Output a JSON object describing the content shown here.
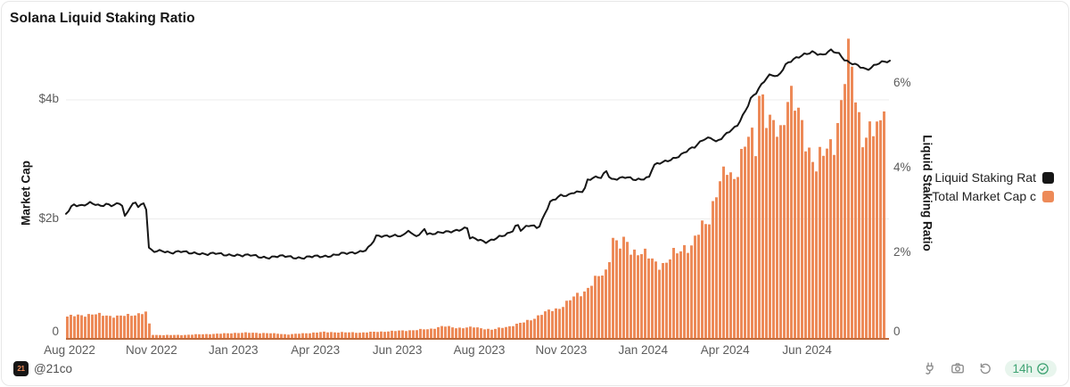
{
  "card": {
    "title": "Solana Liquid Staking Ratio"
  },
  "chart_data": {
    "type": "combo-bar-line",
    "title": "Solana Liquid Staking Ratio",
    "grid": "horizontal-left-axis",
    "legend_position": "right",
    "colors": {
      "line": "#161616",
      "bar": "#ED8A58",
      "baseline": "#BE6B3D",
      "gridline": "#ececec"
    },
    "left_axis": {
      "title": "Market Cap",
      "ticks": [
        "0",
        "$2b",
        "$4b"
      ],
      "tick_values": [
        0,
        2,
        4
      ],
      "unit": "$ billions"
    },
    "right_axis": {
      "title": "Liquid Staking Ratio",
      "ticks": [
        "0",
        "2%",
        "4%",
        "6%"
      ],
      "tick_values": [
        0,
        2,
        4,
        6
      ],
      "unit": "%"
    },
    "x_axis": {
      "ticks": [
        "Aug 2022",
        "Nov 2022",
        "Jan 2023",
        "Apr 2023",
        "Jun 2023",
        "Aug 2023",
        "Nov 2023",
        "Jan 2024",
        "Apr 2024",
        "Jun 2024"
      ]
    },
    "series": [
      {
        "name": "Liquid Staking Rat",
        "type": "line",
        "axis": "right",
        "unit": "%",
        "color": "#161616",
        "points": [
          [
            0.0,
            2.93
          ],
          [
            0.006,
            3.1
          ],
          [
            0.009,
            3.16
          ],
          [
            0.02,
            3.12
          ],
          [
            0.03,
            3.18
          ],
          [
            0.041,
            3.12
          ],
          [
            0.049,
            3.17
          ],
          [
            0.057,
            3.13
          ],
          [
            0.065,
            3.17
          ],
          [
            0.069,
            3.1
          ],
          [
            0.072,
            2.8
          ],
          [
            0.076,
            3.05
          ],
          [
            0.08,
            3.14
          ],
          [
            0.084,
            3.22
          ],
          [
            0.088,
            3.12
          ],
          [
            0.092,
            3.16
          ],
          [
            0.096,
            3.18
          ],
          [
            0.098,
            3.0
          ],
          [
            0.099,
            2.4
          ],
          [
            0.101,
            2.08
          ],
          [
            0.106,
            2.03
          ],
          [
            0.117,
            2.06
          ],
          [
            0.128,
            2.02
          ],
          [
            0.139,
            2.04
          ],
          [
            0.15,
            2.0
          ],
          [
            0.161,
            2.01
          ],
          [
            0.171,
            1.98
          ],
          [
            0.182,
            1.99
          ],
          [
            0.193,
            1.96
          ],
          [
            0.204,
            1.97
          ],
          [
            0.215,
            1.94
          ],
          [
            0.225,
            1.95
          ],
          [
            0.236,
            1.92
          ],
          [
            0.247,
            1.9
          ],
          [
            0.258,
            1.92
          ],
          [
            0.269,
            1.93
          ],
          [
            0.28,
            1.9
          ],
          [
            0.29,
            1.89
          ],
          [
            0.301,
            1.92
          ],
          [
            0.312,
            1.93
          ],
          [
            0.323,
            1.95
          ],
          [
            0.334,
            1.98
          ],
          [
            0.345,
            2.0
          ],
          [
            0.356,
            2.04
          ],
          [
            0.364,
            2.08
          ],
          [
            0.369,
            2.15
          ],
          [
            0.373,
            2.26
          ],
          [
            0.377,
            2.39
          ],
          [
            0.388,
            2.41
          ],
          [
            0.399,
            2.43
          ],
          [
            0.41,
            2.4
          ],
          [
            0.417,
            2.56
          ],
          [
            0.42,
            2.42
          ],
          [
            0.431,
            2.44
          ],
          [
            0.435,
            2.63
          ],
          [
            0.439,
            2.45
          ],
          [
            0.45,
            2.46
          ],
          [
            0.461,
            2.5
          ],
          [
            0.472,
            2.54
          ],
          [
            0.481,
            2.57
          ],
          [
            0.488,
            2.59
          ],
          [
            0.49,
            2.35
          ],
          [
            0.497,
            2.34
          ],
          [
            0.506,
            2.3
          ],
          [
            0.509,
            2.27
          ],
          [
            0.518,
            2.32
          ],
          [
            0.527,
            2.38
          ],
          [
            0.535,
            2.43
          ],
          [
            0.542,
            2.52
          ],
          [
            0.548,
            2.71
          ],
          [
            0.553,
            2.55
          ],
          [
            0.558,
            2.62
          ],
          [
            0.564,
            2.66
          ],
          [
            0.569,
            2.62
          ],
          [
            0.573,
            2.58
          ],
          [
            0.576,
            2.66
          ],
          [
            0.581,
            2.9
          ],
          [
            0.588,
            3.22
          ],
          [
            0.596,
            3.31
          ],
          [
            0.602,
            3.36
          ],
          [
            0.61,
            3.34
          ],
          [
            0.615,
            3.43
          ],
          [
            0.624,
            3.46
          ],
          [
            0.63,
            3.5
          ],
          [
            0.633,
            3.73
          ],
          [
            0.639,
            3.76
          ],
          [
            0.646,
            3.79
          ],
          [
            0.651,
            3.77
          ],
          [
            0.656,
            3.97
          ],
          [
            0.662,
            3.75
          ],
          [
            0.67,
            3.77
          ],
          [
            0.68,
            3.79
          ],
          [
            0.691,
            3.73
          ],
          [
            0.7,
            3.76
          ],
          [
            0.709,
            3.81
          ],
          [
            0.713,
            4.05
          ],
          [
            0.716,
            4.09
          ],
          [
            0.724,
            4.13
          ],
          [
            0.731,
            4.18
          ],
          [
            0.74,
            4.26
          ],
          [
            0.749,
            4.35
          ],
          [
            0.756,
            4.43
          ],
          [
            0.764,
            4.5
          ],
          [
            0.77,
            4.61
          ],
          [
            0.775,
            4.71
          ],
          [
            0.781,
            4.73
          ],
          [
            0.785,
            4.74
          ],
          [
            0.79,
            4.62
          ],
          [
            0.796,
            4.7
          ],
          [
            0.8,
            4.76
          ],
          [
            0.807,
            4.89
          ],
          [
            0.815,
            5.01
          ],
          [
            0.821,
            5.21
          ],
          [
            0.828,
            5.46
          ],
          [
            0.832,
            5.64
          ],
          [
            0.838,
            5.76
          ],
          [
            0.843,
            5.91
          ],
          [
            0.848,
            6.06
          ],
          [
            0.854,
            6.21
          ],
          [
            0.859,
            6.23
          ],
          [
            0.865,
            6.17
          ],
          [
            0.87,
            6.31
          ],
          [
            0.875,
            6.45
          ],
          [
            0.881,
            6.53
          ],
          [
            0.886,
            6.6
          ],
          [
            0.892,
            6.66
          ],
          [
            0.897,
            6.71
          ],
          [
            0.902,
            6.73
          ],
          [
            0.908,
            6.75
          ],
          [
            0.913,
            6.69
          ],
          [
            0.919,
            6.66
          ],
          [
            0.924,
            6.73
          ],
          [
            0.93,
            6.81
          ],
          [
            0.935,
            6.76
          ],
          [
            0.94,
            6.71
          ],
          [
            0.946,
            6.56
          ],
          [
            0.951,
            6.49
          ],
          [
            0.957,
            6.46
          ],
          [
            0.962,
            6.43
          ],
          [
            0.968,
            6.39
          ],
          [
            0.973,
            6.34
          ],
          [
            0.978,
            6.39
          ],
          [
            0.984,
            6.45
          ],
          [
            0.989,
            6.49
          ],
          [
            0.995,
            6.51
          ],
          [
            1.0,
            6.53
          ]
        ]
      },
      {
        "name": "Total Market Cap c",
        "type": "bar",
        "axis": "left",
        "unit": "$b",
        "color": "#ED8A58",
        "points": [
          [
            0.0,
            0.36
          ],
          [
            0.03,
            0.4
          ],
          [
            0.063,
            0.36
          ],
          [
            0.084,
            0.4
          ],
          [
            0.095,
            0.43
          ],
          [
            0.099,
            0.4
          ],
          [
            0.101,
            0.06
          ],
          [
            0.106,
            0.05
          ],
          [
            0.139,
            0.05
          ],
          [
            0.182,
            0.07
          ],
          [
            0.215,
            0.09
          ],
          [
            0.247,
            0.08
          ],
          [
            0.269,
            0.06
          ],
          [
            0.312,
            0.1
          ],
          [
            0.355,
            0.09
          ],
          [
            0.388,
            0.11
          ],
          [
            0.42,
            0.13
          ],
          [
            0.442,
            0.15
          ],
          [
            0.458,
            0.2
          ],
          [
            0.475,
            0.17
          ],
          [
            0.496,
            0.18
          ],
          [
            0.518,
            0.14
          ],
          [
            0.54,
            0.2
          ],
          [
            0.556,
            0.26
          ],
          [
            0.567,
            0.32
          ],
          [
            0.578,
            0.4
          ],
          [
            0.588,
            0.46
          ],
          [
            0.599,
            0.5
          ],
          [
            0.61,
            0.6
          ],
          [
            0.621,
            0.72
          ],
          [
            0.632,
            0.8
          ],
          [
            0.642,
            0.95
          ],
          [
            0.65,
            1.05
          ],
          [
            0.659,
            1.15
          ],
          [
            0.664,
            1.75
          ],
          [
            0.67,
            1.55
          ],
          [
            0.675,
            1.52
          ],
          [
            0.68,
            1.65
          ],
          [
            0.688,
            1.48
          ],
          [
            0.697,
            1.44
          ],
          [
            0.708,
            1.36
          ],
          [
            0.72,
            1.26
          ],
          [
            0.729,
            1.22
          ],
          [
            0.74,
            1.42
          ],
          [
            0.751,
            1.55
          ],
          [
            0.762,
            1.5
          ],
          [
            0.767,
            1.7
          ],
          [
            0.776,
            1.95
          ],
          [
            0.783,
            2.05
          ],
          [
            0.791,
            2.4
          ],
          [
            0.8,
            2.7
          ],
          [
            0.806,
            2.95
          ],
          [
            0.811,
            2.65
          ],
          [
            0.818,
            2.9
          ],
          [
            0.824,
            3.05
          ],
          [
            0.832,
            3.45
          ],
          [
            0.839,
            3.25
          ],
          [
            0.844,
            4.3
          ],
          [
            0.848,
            4.0
          ],
          [
            0.854,
            3.5
          ],
          [
            0.862,
            3.55
          ],
          [
            0.87,
            3.5
          ],
          [
            0.878,
            4.1
          ],
          [
            0.884,
            3.95
          ],
          [
            0.892,
            3.7
          ],
          [
            0.899,
            3.45
          ],
          [
            0.906,
            3.1
          ],
          [
            0.913,
            2.85
          ],
          [
            0.921,
            3.05
          ],
          [
            0.927,
            3.25
          ],
          [
            0.935,
            3.35
          ],
          [
            0.943,
            3.8
          ],
          [
            0.949,
            4.45
          ],
          [
            0.954,
            4.85
          ],
          [
            0.96,
            4.3
          ],
          [
            0.965,
            3.75
          ],
          [
            0.971,
            3.25
          ],
          [
            0.976,
            3.35
          ],
          [
            0.984,
            3.5
          ],
          [
            0.99,
            3.6
          ],
          [
            0.997,
            4.25
          ]
        ]
      }
    ]
  },
  "legend": {
    "items": [
      {
        "label": "Liquid Staking Rat",
        "color": "#161616"
      },
      {
        "label": "Total Market Cap c",
        "color": "#ED8A58"
      }
    ]
  },
  "footer": {
    "badge": "21",
    "handle": "@21co",
    "timestamp": "14h",
    "timestamp_color": "#3EA272",
    "icons": [
      "plug-icon",
      "camera-icon",
      "undo-icon",
      "check-circle-icon"
    ]
  }
}
